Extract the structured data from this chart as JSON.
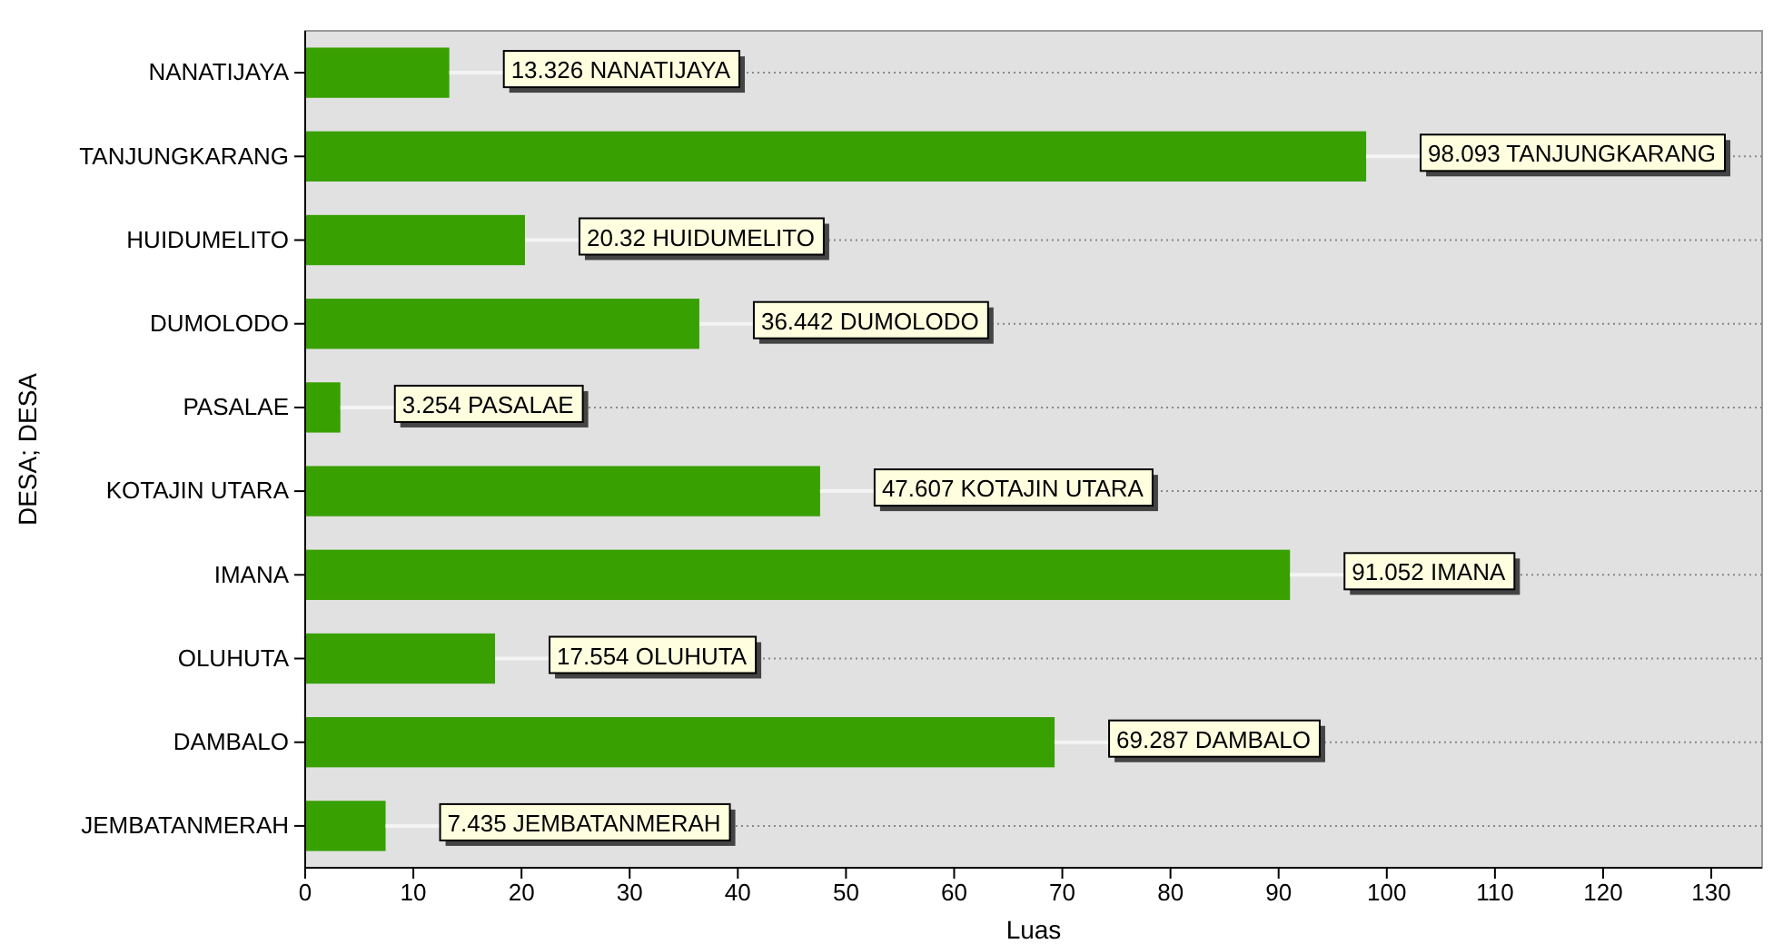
{
  "chart_data": {
    "type": "bar",
    "orientation": "horizontal",
    "xlabel": "Luas",
    "ylabel": "DESA; DESA",
    "categories": [
      "NANATIJAYA",
      "TANJUNGKARANG",
      "HUIDUMELITO",
      "DUMOLODO",
      "PASALAE",
      "KOTAJIN UTARA",
      "IMANA",
      "OLUHUTA",
      "DAMBALO",
      "JEMBATANMERAH"
    ],
    "values": [
      13.326,
      98.093,
      20.32,
      36.442,
      3.254,
      47.607,
      91.052,
      17.554,
      69.287,
      7.435
    ],
    "value_labels": [
      "13.326 NANATIJAYA",
      "98.093 TANJUNGKARANG",
      "20.32 HUIDUMELITO",
      "36.442 DUMOLODO",
      "3.254 PASALAE",
      "47.607 KOTAJIN UTARA",
      "91.052 IMANA",
      "17.554 OLUHUTA",
      "69.287 DAMBALO",
      "7.435 JEMBATANMERAH"
    ],
    "color": "#38a000",
    "xlim": [
      0,
      134.7
    ],
    "xticks": [
      0,
      10,
      20,
      30,
      40,
      50,
      60,
      70,
      80,
      90,
      100,
      110,
      120,
      130
    ],
    "grid": "y"
  }
}
